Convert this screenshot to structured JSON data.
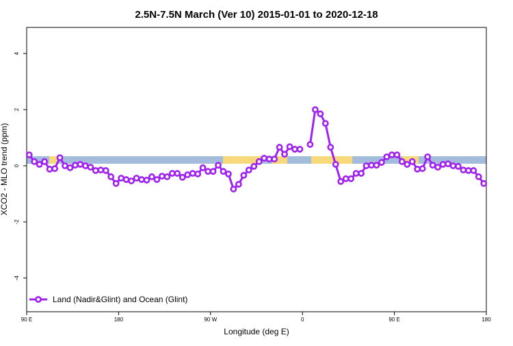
{
  "chart_data": {
    "type": "line",
    "title": "2.5N-7.5N March (Ver 10)   2015-01-01 to 2020-12-18",
    "x_label": "Longitude (deg E)",
    "y_label": "XCO2 - MLO trend (ppm)",
    "xlim": [
      90,
      540
    ],
    "ylim": [
      -5.2,
      4.93
    ],
    "xticks": [
      {
        "value": 90,
        "label": "90 E"
      },
      180,
      {
        "value": 270,
        "label": "90 W"
      },
      {
        "value": 360,
        "label": "0"
      },
      {
        "value": 450,
        "label": "90 E"
      },
      {
        "value": 540,
        "label": "180"
      }
    ],
    "yticks": [
      -4,
      -2,
      0,
      2,
      4
    ],
    "legend": "bottom-left",
    "x": [
      92.5,
      97.5,
      102.5,
      107.5,
      112.5,
      117.5,
      122.5,
      127.5,
      132.5,
      137.5,
      142.5,
      147.5,
      152.5,
      157.5,
      162.5,
      167.5,
      172.5,
      177.5,
      182.5,
      187.5,
      192.5,
      197.5,
      202.5,
      207.5,
      212.5,
      217.5,
      222.5,
      227.5,
      232.5,
      237.5,
      242.5,
      247.5,
      252.5,
      257.5,
      262.5,
      267.5,
      272.5,
      277.5,
      282.5,
      287.5,
      292.5,
      297.5,
      302.5,
      307.5,
      312.5,
      317.5,
      322.5,
      327.5,
      332.5,
      337.5,
      342.5,
      347.5,
      352.5,
      357.5,
      362.5,
      367.5,
      372.5,
      377.5,
      382.5,
      387.5,
      392.5,
      397.5,
      402.5,
      407.5,
      412.5,
      417.5,
      422.5,
      427.5,
      432.5,
      437.5,
      442.5,
      447.5,
      452.5,
      457.5,
      462.5,
      467.5,
      472.5,
      477.5,
      482.5,
      487.5,
      492.5,
      497.5,
      502.5,
      507.5,
      512.5,
      517.5,
      522.5,
      527.5,
      532.5,
      537.5
    ],
    "series": [
      {
        "name": "Land (Nadir&Glint) and Ocean (Glint)",
        "color": "#a020f0",
        "values": [
          0.39,
          0.15,
          0.05,
          0.15,
          -0.12,
          -0.1,
          0.29,
          0,
          -0.07,
          0.02,
          0.05,
          0,
          -0.05,
          -0.17,
          -0.15,
          -0.17,
          -0.39,
          -0.63,
          -0.44,
          -0.49,
          -0.54,
          -0.44,
          -0.49,
          -0.51,
          -0.39,
          -0.49,
          -0.37,
          -0.39,
          -0.27,
          -0.27,
          -0.41,
          -0.32,
          -0.27,
          -0.29,
          -0.07,
          -0.2,
          -0.2,
          0.02,
          -0.2,
          -0.29,
          -0.83,
          -0.66,
          -0.34,
          -0.15,
          -0.02,
          0.15,
          0.27,
          0.24,
          0.24,
          0.66,
          0.41,
          0.68,
          0.59,
          0.59,
          null,
          0.76,
          2.0,
          1.85,
          1.51,
          0.66,
          0.05,
          -0.56,
          -0.46,
          -0.46,
          -0.27,
          -0.27,
          0,
          0.02,
          0.02,
          0.12,
          0.32,
          0.39,
          0.39,
          0.15,
          0.05,
          0.15,
          -0.12,
          -0.1,
          0.32,
          0.02,
          -0.05,
          0.05,
          0.07,
          0,
          -0.02,
          -0.15,
          -0.17,
          -0.17,
          -0.39,
          -0.63
        ]
      }
    ]
  }
}
